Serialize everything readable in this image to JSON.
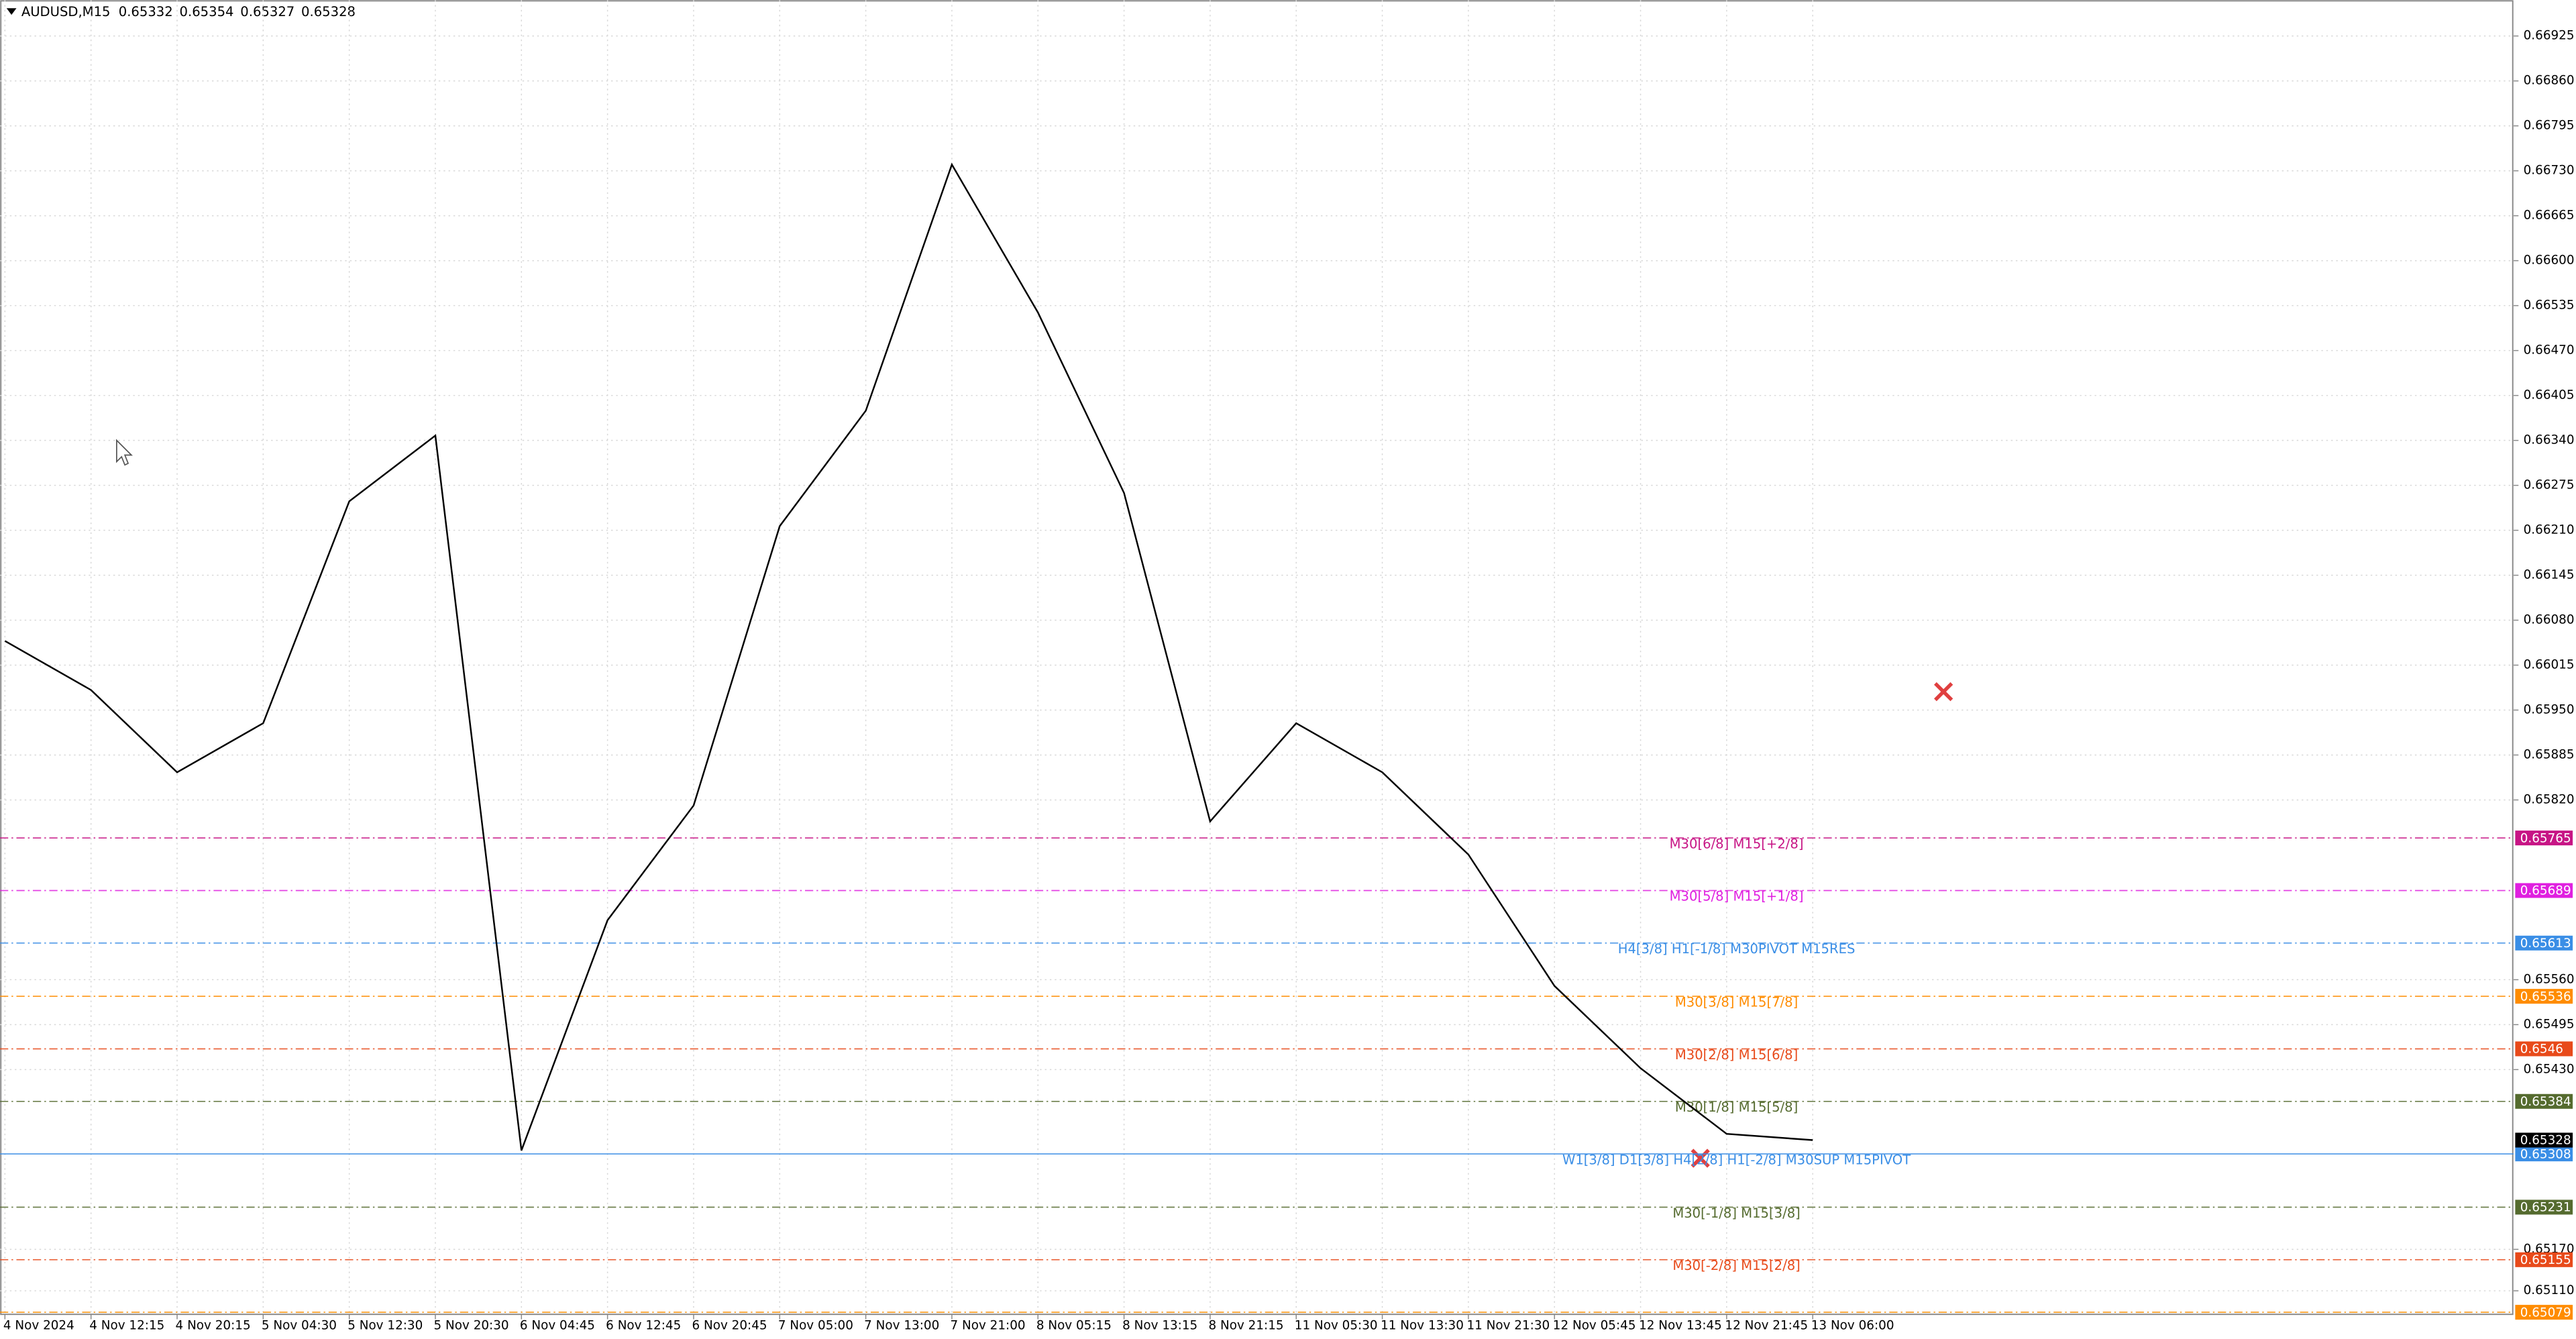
{
  "chart_data": {
    "type": "line",
    "title": "AUDUSD,M15",
    "ohlc": [
      0.65332,
      0.65354,
      0.65327,
      0.65328
    ],
    "categories": [
      "4 Nov 2024",
      "4 Nov 12:15",
      "4 Nov 20:15",
      "5 Nov 04:30",
      "5 Nov 12:30",
      "5 Nov 20:30",
      "6 Nov 04:45",
      "6 Nov 12:45",
      "6 Nov 20:45",
      "7 Nov 05:00",
      "7 Nov 13:00",
      "7 Nov 21:00",
      "8 Nov 05:15",
      "8 Nov 13:15",
      "8 Nov 21:15",
      "11 Nov 05:30",
      "11 Nov 13:30",
      "11 Nov 21:30",
      "12 Nov 05:45",
      "12 Nov 13:45",
      "12 Nov 21:45",
      "13 Nov 06:00"
    ],
    "values": [
      0.6605,
      0.65979,
      0.6586,
      0.65931,
      0.66252,
      0.66347,
      0.65313,
      0.65646,
      0.65812,
      0.66216,
      0.66383,
      0.66739,
      0.66525,
      0.66264,
      0.65789,
      0.65931,
      0.6586,
      0.65741,
      0.65551,
      0.65432,
      0.65337,
      0.65328
    ],
    "color": "#000000",
    "ylim": [
      0.65076,
      0.66977
    ],
    "yticks": [
      0.66925,
      {
        "value": 0.6686,
        "label": "0.66860"
      },
      0.66795,
      {
        "value": 0.6673,
        "label": "0.66730"
      },
      0.66665,
      {
        "value": 0.666,
        "label": "0.66600"
      },
      0.66535,
      {
        "value": 0.6647,
        "label": "0.66470"
      },
      0.66405,
      {
        "value": 0.6634,
        "label": "0.66340"
      },
      0.66275,
      {
        "value": 0.6621,
        "label": "0.66210"
      },
      0.66145,
      {
        "value": 0.6608,
        "label": "0.66080"
      },
      0.66015,
      {
        "value": 0.6595,
        "label": "0.65950"
      },
      0.65885,
      {
        "value": 0.6582,
        "label": "0.65820"
      },
      {
        "value": 0.6556,
        "label": "0.65560"
      },
      0.65495,
      {
        "value": 0.6543,
        "label": "0.65430"
      },
      {
        "value": 0.6517,
        "label": "0.65170"
      },
      {
        "value": 0.6511,
        "label": "0.65110"
      }
    ],
    "grid": true,
    "levels": [
      {
        "label": "M30[6/8] M15[+2/8]",
        "value": 0.65765,
        "color": "#c71585"
      },
      {
        "label": "M30[5/8] M15[+1/8]",
        "value": 0.65689,
        "color": "#e020e0"
      },
      {
        "label": "H4[3/8] H1[-1/8] M30PIVOT M15RES",
        "value": 0.65613,
        "color": "#3a8ee6"
      },
      {
        "label": "M30[3/8] M15[7/8]",
        "value": 0.65536,
        "color": "#ff8c00"
      },
      {
        "label": "M30[2/8] M15[6/8]",
        "value": 0.6546,
        "color": "#e84a1a"
      },
      {
        "label": "M30[1/8] M15[5/8]",
        "value": 0.65384,
        "color": "#556b2f"
      },
      {
        "label": "W1[3/8] D1[3/8] H4[2/8] H1[-2/8] M30SUP M15PIVOT",
        "value": 0.65308,
        "color": "#3a8ee6"
      },
      {
        "label": "M30[-1/8] M15[3/8]",
        "value": 0.65231,
        "color": "#556b2f"
      },
      {
        "label": "M30[-2/8] M15[2/8]",
        "value": 0.65155,
        "color": "#e84a1a"
      },
      {
        "value": 0.65079,
        "color": "#ff8c00"
      }
    ]
  }
}
